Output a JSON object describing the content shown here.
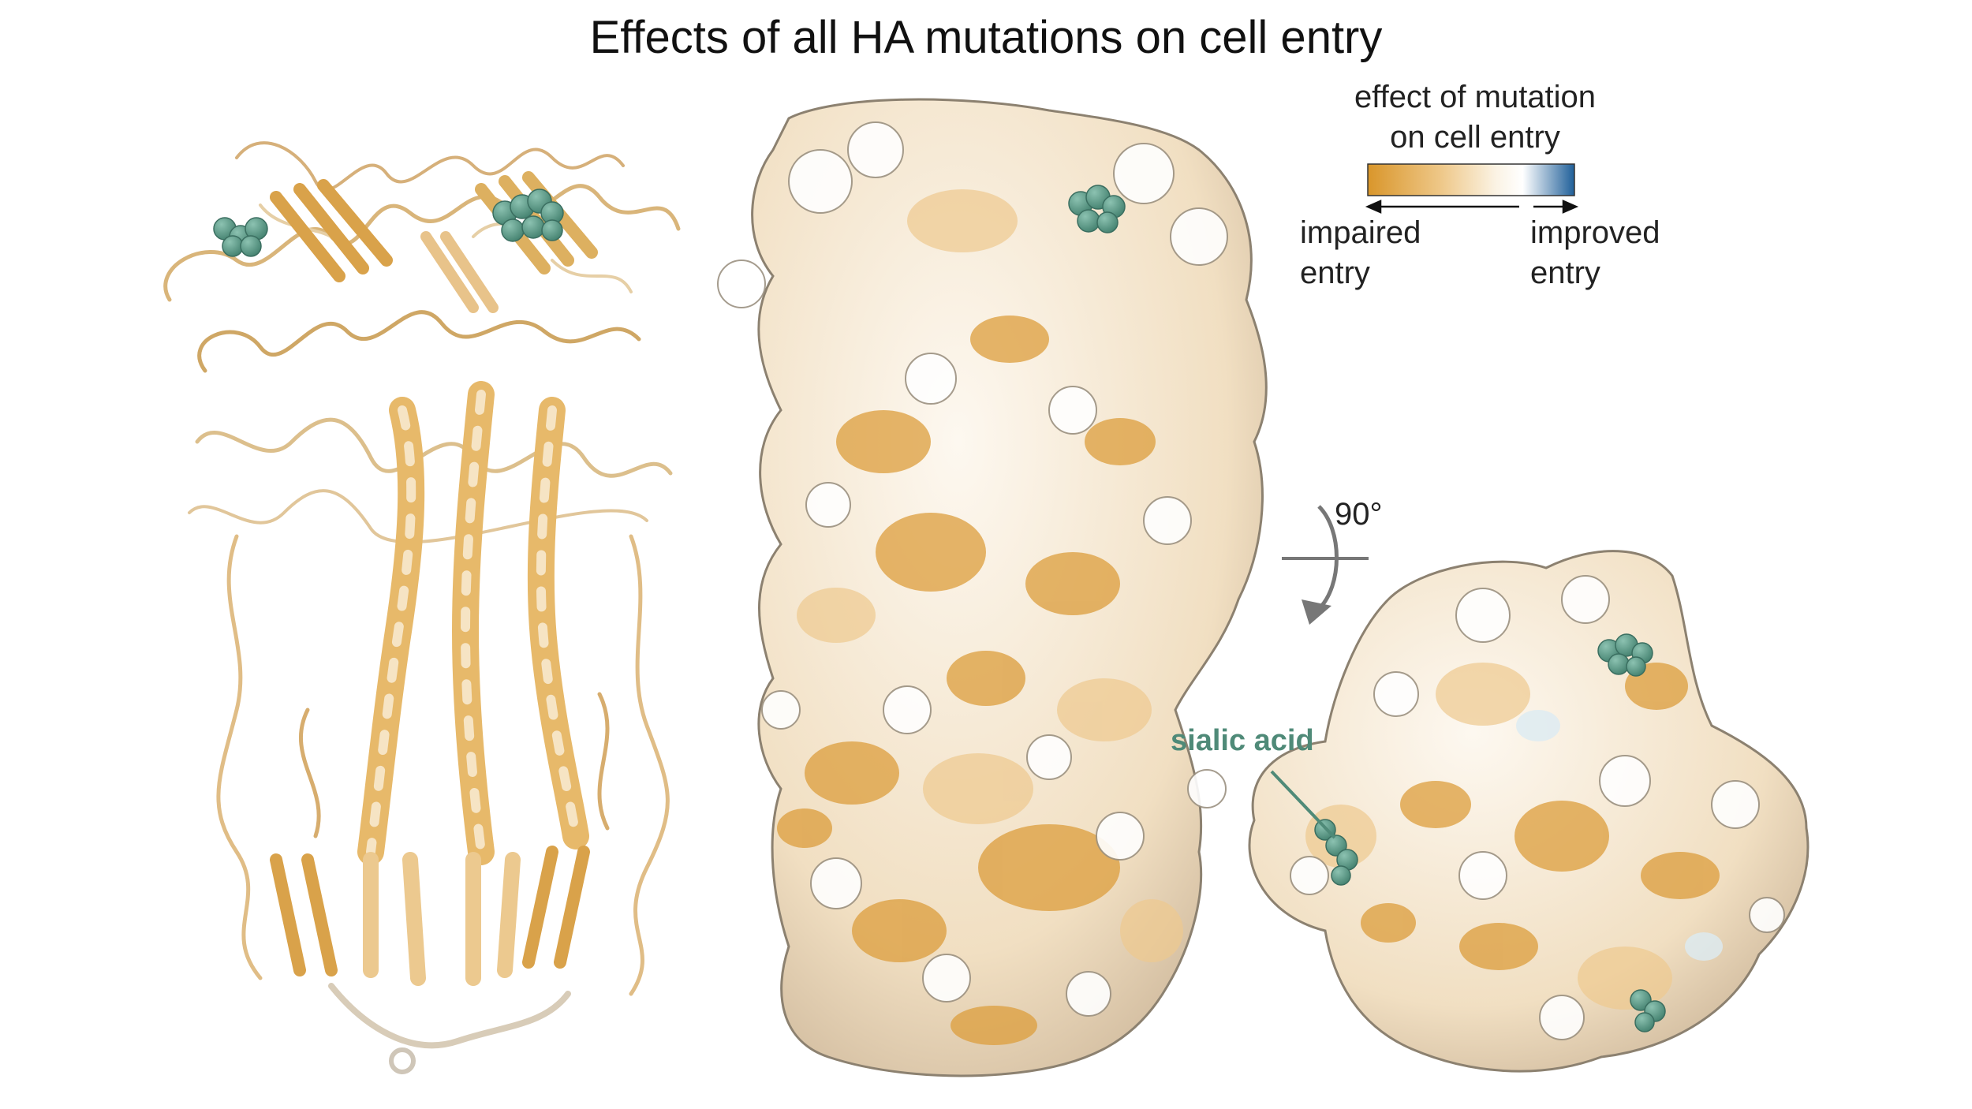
{
  "title": "Effects of all HA mutations on cell entry",
  "legend": {
    "title_line1": "effect of mutation",
    "title_line2": "on cell entry",
    "left_line1": "impaired",
    "left_line2": "entry",
    "right_line1": "improved",
    "right_line2": "entry",
    "colors": {
      "impaired": "#d9962b",
      "neutral": "#fbf6ee",
      "improved": "#1f5f99"
    }
  },
  "rotation_label": "90°",
  "annotation": "sialic acid",
  "colors": {
    "sialic_acid": "#4f8a78",
    "surface_outline": "#7a7062"
  }
}
